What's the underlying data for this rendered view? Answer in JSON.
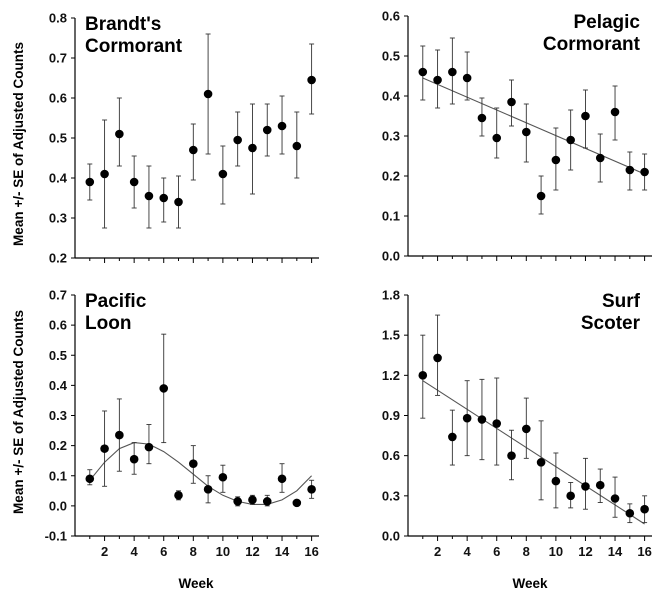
{
  "figure": {
    "ylabel": "Mean +/- SE of Adjusted Counts",
    "xlabel": "Week"
  },
  "chart_data": [
    {
      "type": "scatter",
      "title": "Brandt's\nCormorant",
      "ylim": [
        0.2,
        0.8
      ],
      "yticks": [
        "0.2",
        "0.3",
        "0.4",
        "0.5",
        "0.6",
        "0.7",
        "0.8"
      ],
      "xlim": [
        0,
        16.5
      ],
      "xticks": [],
      "x": [
        1,
        2,
        3,
        4,
        5,
        6,
        7,
        8,
        9,
        10,
        11,
        12,
        13,
        14,
        15,
        16
      ],
      "y": [
        0.39,
        0.41,
        0.51,
        0.39,
        0.355,
        0.35,
        0.34,
        0.47,
        0.61,
        0.41,
        0.495,
        0.475,
        0.52,
        0.53,
        0.48,
        0.645
      ],
      "err_low": [
        0.345,
        0.275,
        0.43,
        0.325,
        0.275,
        0.29,
        0.275,
        0.395,
        0.46,
        0.335,
        0.43,
        0.36,
        0.455,
        0.46,
        0.4,
        0.56
      ],
      "err_high": [
        0.435,
        0.545,
        0.6,
        0.455,
        0.43,
        0.4,
        0.405,
        0.535,
        0.76,
        0.48,
        0.565,
        0.585,
        0.585,
        0.605,
        0.565,
        0.735
      ],
      "trend": null
    },
    {
      "type": "scatter",
      "title": "Pelagic\nCormorant",
      "ylim": [
        0.0,
        0.6
      ],
      "yticks": [
        "0.0",
        "0.1",
        "0.2",
        "0.3",
        "0.4",
        "0.5",
        "0.6"
      ],
      "xlim": [
        0,
        16.5
      ],
      "xticks": [],
      "x": [
        1,
        2,
        3,
        4,
        5,
        6,
        7,
        8,
        9,
        10,
        11,
        12,
        13,
        14,
        15,
        16
      ],
      "y": [
        0.46,
        0.44,
        0.46,
        0.445,
        0.345,
        0.295,
        0.385,
        0.31,
        0.15,
        0.24,
        0.29,
        0.35,
        0.245,
        0.36,
        0.215,
        0.21
      ],
      "err_low": [
        0.39,
        0.37,
        0.38,
        0.39,
        0.3,
        0.245,
        0.325,
        0.235,
        0.105,
        0.165,
        0.215,
        0.27,
        0.185,
        0.29,
        0.165,
        0.165
      ],
      "err_high": [
        0.525,
        0.515,
        0.545,
        0.51,
        0.395,
        0.37,
        0.44,
        0.38,
        0.2,
        0.32,
        0.365,
        0.415,
        0.305,
        0.425,
        0.26,
        0.255
      ],
      "trend": {
        "kind": "linear",
        "x": [
          1,
          16
        ],
        "y": [
          0.445,
          0.205
        ]
      }
    },
    {
      "type": "scatter",
      "title": "Pacific\nLoon",
      "ylim": [
        -0.1,
        0.7
      ],
      "yticks": [
        "-0.1",
        "0.0",
        "0.1",
        "0.2",
        "0.3",
        "0.4",
        "0.5",
        "0.6",
        "0.7"
      ],
      "xlim": [
        0,
        16.5
      ],
      "xticks": [
        "2",
        "4",
        "6",
        "8",
        "10",
        "12",
        "14",
        "16"
      ],
      "x": [
        1,
        2,
        3,
        4,
        5,
        6,
        7,
        8,
        9,
        10,
        11,
        12,
        13,
        14,
        15,
        16
      ],
      "y": [
        0.09,
        0.19,
        0.235,
        0.155,
        0.195,
        0.39,
        0.035,
        0.14,
        0.055,
        0.095,
        0.015,
        0.02,
        0.015,
        0.09,
        0.01,
        0.055
      ],
      "err_low": [
        0.07,
        0.065,
        0.115,
        0.105,
        0.14,
        0.21,
        0.02,
        0.075,
        0.01,
        0.045,
        0.0,
        0.005,
        0.0,
        0.045,
        0.005,
        0.025
      ],
      "err_high": [
        0.12,
        0.315,
        0.355,
        0.21,
        0.27,
        0.57,
        0.05,
        0.2,
        0.1,
        0.135,
        0.03,
        0.035,
        0.035,
        0.14,
        0.015,
        0.085
      ],
      "trend": {
        "kind": "curve",
        "x": [
          1,
          2,
          3,
          4,
          5,
          6,
          7,
          8,
          9,
          10,
          11,
          12,
          13,
          14,
          15,
          16
        ],
        "y": [
          0.085,
          0.145,
          0.19,
          0.21,
          0.205,
          0.18,
          0.145,
          0.105,
          0.065,
          0.035,
          0.015,
          0.005,
          0.005,
          0.02,
          0.05,
          0.1
        ]
      }
    },
    {
      "type": "scatter",
      "title": "Surf\nScoter",
      "ylim": [
        0.0,
        1.8
      ],
      "yticks": [
        "0.0",
        "0.3",
        "0.6",
        "0.9",
        "1.2",
        "1.5",
        "1.8"
      ],
      "xlim": [
        0,
        16.5
      ],
      "xticks": [
        "2",
        "4",
        "6",
        "8",
        "10",
        "12",
        "14",
        "16"
      ],
      "x": [
        1,
        2,
        3,
        4,
        5,
        6,
        7,
        8,
        9,
        10,
        11,
        12,
        13,
        14,
        15,
        16
      ],
      "y": [
        1.2,
        1.33,
        0.74,
        0.88,
        0.87,
        0.84,
        0.6,
        0.8,
        0.55,
        0.41,
        0.3,
        0.37,
        0.38,
        0.28,
        0.17,
        0.2
      ],
      "err_low": [
        0.88,
        1.05,
        0.53,
        0.6,
        0.57,
        0.53,
        0.42,
        0.58,
        0.27,
        0.21,
        0.21,
        0.2,
        0.25,
        0.14,
        0.1,
        0.1
      ],
      "err_high": [
        1.5,
        1.65,
        0.94,
        1.16,
        1.17,
        1.18,
        0.79,
        1.03,
        0.86,
        0.62,
        0.4,
        0.58,
        0.5,
        0.44,
        0.24,
        0.3
      ],
      "trend": {
        "kind": "linear",
        "x": [
          1,
          16
        ],
        "y": [
          1.16,
          0.09
        ]
      }
    }
  ]
}
